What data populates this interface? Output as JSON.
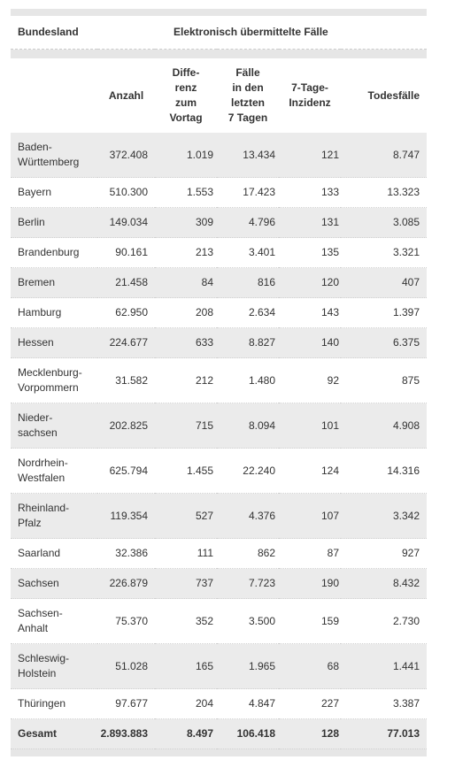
{
  "table": {
    "group_header": [
      "Bundesland",
      "Elektronisch übermittelte Fälle"
    ],
    "columns": [
      "Anzahl",
      "Diffe-\nrenz\nzum\nVortag",
      "Fälle\nin den\nletzten\n7 Tagen",
      "7-Tage-\nInzidenz",
      "Todesfälle"
    ],
    "rows": [
      [
        "Baden-\nWürttemberg",
        "372.408",
        "1.019",
        "13.434",
        "121",
        "8.747"
      ],
      [
        "Bayern",
        "510.300",
        "1.553",
        "17.423",
        "133",
        "13.323"
      ],
      [
        "Berlin",
        "149.034",
        "309",
        "4.796",
        "131",
        "3.085"
      ],
      [
        "Brandenburg",
        "90.161",
        "213",
        "3.401",
        "135",
        "3.321"
      ],
      [
        "Bremen",
        "21.458",
        "84",
        "816",
        "120",
        "407"
      ],
      [
        "Hamburg",
        "62.950",
        "208",
        "2.634",
        "143",
        "1.397"
      ],
      [
        "Hessen",
        "224.677",
        "633",
        "8.827",
        "140",
        "6.375"
      ],
      [
        "Mecklenburg-\nVorpommern",
        "31.582",
        "212",
        "1.480",
        "92",
        "875"
      ],
      [
        "Nieder-\nsachsen",
        "202.825",
        "715",
        "8.094",
        "101",
        "4.908"
      ],
      [
        "Nordrhein-\nWestfalen",
        "625.794",
        "1.455",
        "22.240",
        "124",
        "14.316"
      ],
      [
        "Rheinland-\nPfalz",
        "119.354",
        "527",
        "4.376",
        "107",
        "3.342"
      ],
      [
        "Saarland",
        "32.386",
        "111",
        "862",
        "87",
        "927"
      ],
      [
        "Sachsen",
        "226.879",
        "737",
        "7.723",
        "190",
        "8.432"
      ],
      [
        "Sachsen-\nAnhalt",
        "75.370",
        "352",
        "3.500",
        "159",
        "2.730"
      ],
      [
        "Schleswig-\nHolstein",
        "51.028",
        "165",
        "1.965",
        "68",
        "1.441"
      ],
      [
        "Thüringen",
        "97.677",
        "204",
        "4.847",
        "227",
        "3.387"
      ]
    ],
    "total": [
      "Gesamt",
      "2.893.883",
      "8.497",
      "106.418",
      "128",
      "77.013"
    ]
  }
}
